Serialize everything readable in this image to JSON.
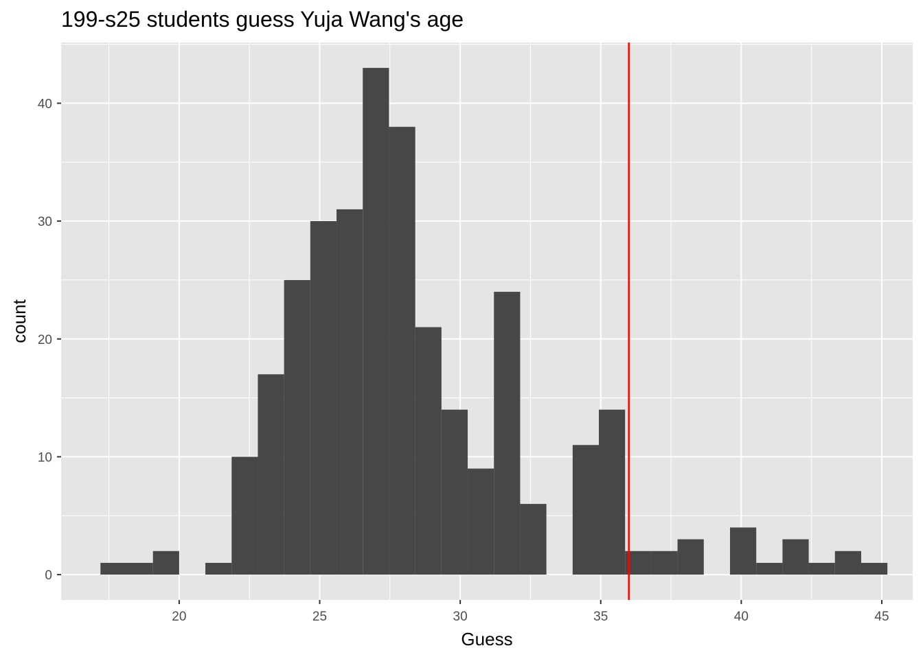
{
  "chart_data": {
    "type": "histogram",
    "title": "199-s25 students guess Yuja Wang's age",
    "xlabel": "Guess",
    "ylabel": "count",
    "xlim": [
      15.8,
      46.1
    ],
    "ylim": [
      -2.15,
      45.15
    ],
    "x_ticks": [
      20,
      25,
      30,
      35,
      40,
      45
    ],
    "y_ticks": [
      0,
      10,
      20,
      30,
      40
    ],
    "bin_width": 0.9333,
    "bins": [
      {
        "start": 17.2,
        "count": 1
      },
      {
        "start": 18.133,
        "count": 1
      },
      {
        "start": 19.067,
        "count": 2
      },
      {
        "start": 20.0,
        "count": 0
      },
      {
        "start": 20.933,
        "count": 1
      },
      {
        "start": 21.867,
        "count": 10
      },
      {
        "start": 22.8,
        "count": 17
      },
      {
        "start": 23.733,
        "count": 25
      },
      {
        "start": 24.667,
        "count": 30
      },
      {
        "start": 25.6,
        "count": 31
      },
      {
        "start": 26.533,
        "count": 43
      },
      {
        "start": 27.467,
        "count": 38
      },
      {
        "start": 28.4,
        "count": 21
      },
      {
        "start": 29.333,
        "count": 14
      },
      {
        "start": 30.267,
        "count": 9
      },
      {
        "start": 31.2,
        "count": 24
      },
      {
        "start": 32.133,
        "count": 6
      },
      {
        "start": 33.067,
        "count": 0
      },
      {
        "start": 34.0,
        "count": 11
      },
      {
        "start": 34.933,
        "count": 14
      },
      {
        "start": 35.867,
        "count": 2
      },
      {
        "start": 36.8,
        "count": 2
      },
      {
        "start": 37.733,
        "count": 3
      },
      {
        "start": 38.667,
        "count": 0
      },
      {
        "start": 39.6,
        "count": 4
      },
      {
        "start": 40.533,
        "count": 1
      },
      {
        "start": 41.467,
        "count": 3
      },
      {
        "start": 42.4,
        "count": 1
      },
      {
        "start": 43.333,
        "count": 2
      },
      {
        "start": 44.267,
        "count": 1
      }
    ],
    "reference_line": {
      "x": 36,
      "color": "#ff0000"
    },
    "colors": {
      "bar": "#474747",
      "panel": "#e5e5e5",
      "grid": "#ffffff",
      "tick": "#333333"
    }
  }
}
